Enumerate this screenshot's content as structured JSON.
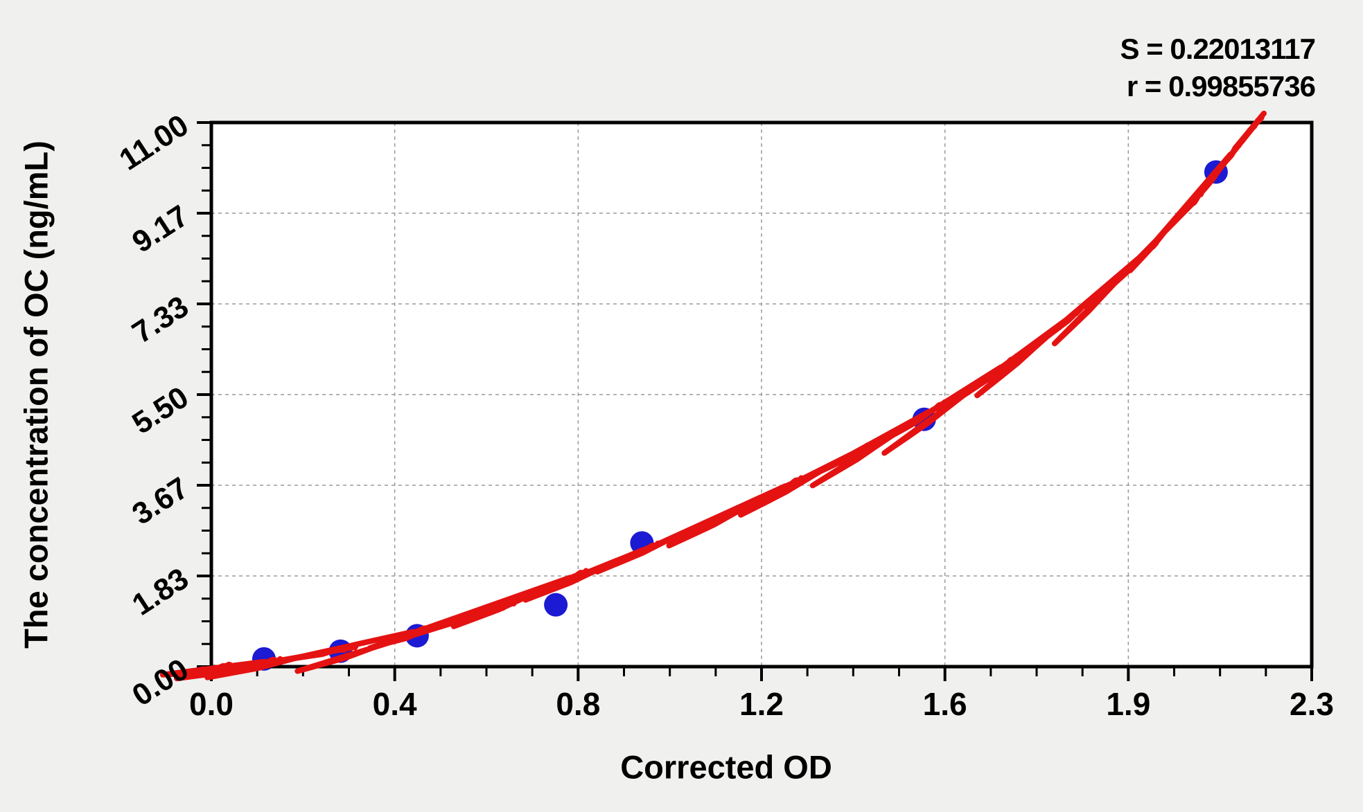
{
  "stats": {
    "s_label": "S = 0.22013117",
    "r_label": "r = 0.99855736"
  },
  "chart_data": {
    "type": "scatter",
    "title": "",
    "xlabel": "Corrected OD",
    "ylabel": "The concentration of OC (ng/mL)",
    "xlim": [
      0,
      2.3
    ],
    "ylim": [
      0,
      11
    ],
    "x_tick_labels": [
      "0.0",
      "0.4",
      "0.8",
      "1.2",
      "1.6",
      "1.9",
      "2.3"
    ],
    "y_tick_labels": [
      "0.00",
      "1.83",
      "3.67",
      "5.50",
      "7.33",
      "9.17",
      "11.00"
    ],
    "minor_ticks_per_major": 4,
    "grid": "dashed, at major ticks, both axes",
    "legend": "none",
    "annotations": [
      "S = 0.22013117",
      "r = 0.99855736"
    ],
    "series": [
      {
        "name": "standard-points",
        "type": "scatter",
        "color": "#1c1ad2",
        "points": [
          [
            0.11,
            0.156
          ],
          [
            0.27,
            0.312
          ],
          [
            0.43,
            0.625
          ],
          [
            0.72,
            1.25
          ],
          [
            0.9,
            2.5
          ],
          [
            1.49,
            5.0
          ],
          [
            2.1,
            10.0
          ]
        ]
      },
      {
        "name": "fitted-curve",
        "type": "line",
        "color": "#e51212",
        "points": [
          [
            0.03,
            0.02
          ],
          [
            0.11,
            0.1
          ],
          [
            0.27,
            0.34
          ],
          [
            0.42,
            0.7
          ],
          [
            0.6,
            1.17
          ],
          [
            0.75,
            1.8
          ],
          [
            0.9,
            2.35
          ],
          [
            1.05,
            2.95
          ],
          [
            1.2,
            3.65
          ],
          [
            1.35,
            4.35
          ],
          [
            1.5,
            5.15
          ],
          [
            1.65,
            6.05
          ],
          [
            1.8,
            7.1
          ],
          [
            1.95,
            8.35
          ],
          [
            2.05,
            9.35
          ],
          [
            2.13,
            10.35
          ],
          [
            2.19,
            11.05
          ],
          [
            2.2,
            11.18
          ]
        ]
      }
    ]
  },
  "colors": {
    "page_bg": "#f0f0ee",
    "plot_bg": "#ffffff",
    "axis": "#000000",
    "grid": "#9a9a9a",
    "points": "#1c1ad2",
    "curve": "#e51212",
    "text": "#000000"
  }
}
